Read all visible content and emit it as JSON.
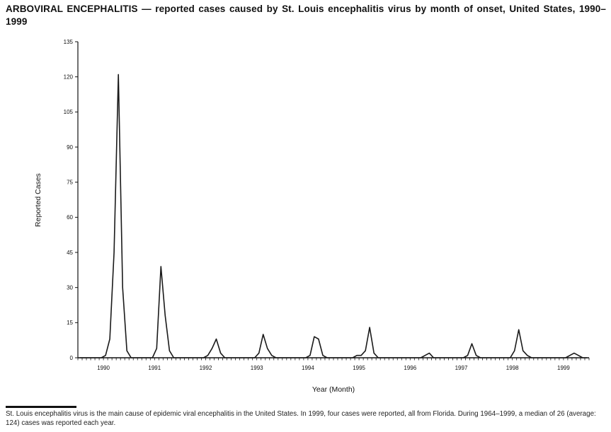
{
  "title": "ARBOVIRAL ENCEPHALITIS — reported cases caused by St. Louis encephalitis virus by month of onset, United States, 1990–1999",
  "footnote": "St. Louis encephalitis virus is the main cause of epidemic viral encephalitis in the United States. In 1999, four cases were reported, all from Florida. During 1964–1999, a median of 26 (average: 124) cases was reported each year.",
  "chart_data": {
    "type": "line",
    "title": "",
    "xlabel": "Year (Month)",
    "ylabel": "Reported Cases",
    "ylim": [
      0,
      135
    ],
    "yticks": [
      0,
      15,
      30,
      45,
      60,
      75,
      90,
      105,
      120,
      135
    ],
    "x_unit": "month",
    "x_years": [
      "1990",
      "1991",
      "1992",
      "1993",
      "1994",
      "1995",
      "1996",
      "1997",
      "1998",
      "1999"
    ],
    "months_per_year": 12,
    "values": [
      0,
      0,
      0,
      0,
      0,
      0,
      1,
      8,
      45,
      121,
      30,
      3,
      0,
      0,
      0,
      0,
      0,
      0,
      4,
      39,
      18,
      3,
      0,
      0,
      0,
      0,
      0,
      0,
      0,
      0,
      1,
      4,
      8,
      2,
      0,
      0,
      0,
      0,
      0,
      0,
      0,
      0,
      2,
      10,
      4,
      1,
      0,
      0,
      0,
      0,
      0,
      0,
      0,
      0,
      1,
      9,
      8,
      1,
      0,
      0,
      0,
      0,
      0,
      0,
      0,
      1,
      1,
      3,
      13,
      2,
      0,
      0,
      0,
      0,
      0,
      0,
      0,
      0,
      0,
      0,
      0,
      1,
      2,
      0,
      0,
      0,
      0,
      0,
      0,
      0,
      0,
      1,
      6,
      1,
      0,
      0,
      0,
      0,
      0,
      0,
      0,
      0,
      3,
      12,
      3,
      1,
      0,
      0,
      0,
      0,
      0,
      0,
      0,
      0,
      0,
      1,
      2,
      1,
      0,
      0
    ],
    "line_color": "#1a1a1a",
    "grid": false,
    "legend_position": "none"
  }
}
